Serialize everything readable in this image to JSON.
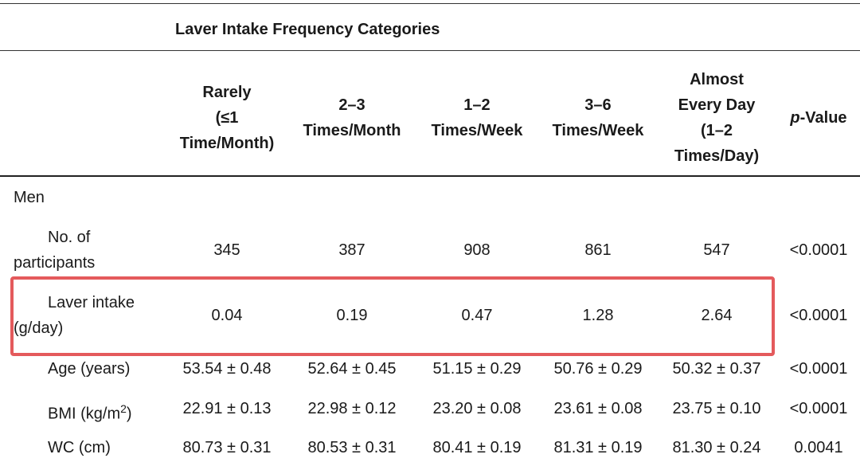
{
  "caption": "Laver Intake Frequency Categories",
  "columns": [
    {
      "lines": [
        "Rarely",
        "(≤1",
        "Time/Month)"
      ]
    },
    {
      "lines": [
        "2–3",
        "Times/Month"
      ]
    },
    {
      "lines": [
        "1–2",
        "Times/Week"
      ]
    },
    {
      "lines": [
        "3–6",
        "Times/Week"
      ]
    },
    {
      "lines": [
        "Almost",
        "Every Day",
        "(1–2",
        "Times/Day)"
      ]
    }
  ],
  "pvalue_header": {
    "italic": "p",
    "rest": "-Value"
  },
  "section": "Men",
  "rows": [
    {
      "label_lines": [
        "No. of",
        "participants"
      ],
      "values": [
        "345",
        "387",
        "908",
        "861",
        "547"
      ],
      "p": "<0.0001"
    },
    {
      "label_lines": [
        "Laver intake",
        "(g/day)"
      ],
      "values": [
        "0.04",
        "0.19",
        "0.47",
        "1.28",
        "2.64"
      ],
      "p": "<0.0001"
    },
    {
      "label_lines": [
        "Age (years)"
      ],
      "values": [
        "53.54 ± 0.48",
        "52.64 ± 0.45",
        "51.15 ± 0.29",
        "50.76 ± 0.29",
        "50.32 ± 0.37"
      ],
      "p": "<0.0001"
    },
    {
      "label_lines": [
        "BMI (kg/m",
        "2",
        ")"
      ],
      "values": [
        "22.91 ± 0.13",
        "22.98 ± 0.12",
        "23.20 ± 0.08",
        "23.61 ± 0.08",
        "23.75 ± 0.10"
      ],
      "p": "<0.0001"
    },
    {
      "label_lines": [
        "WC (cm)"
      ],
      "values": [
        "80.73 ± 0.31",
        "80.53 ± 0.31",
        "80.41 ± 0.19",
        "81.31 ± 0.19",
        "81.30 ± 0.24"
      ],
      "p": "0.0041"
    }
  ],
  "colors": {
    "highlight": "#e45a5c",
    "rule": "#333333"
  }
}
